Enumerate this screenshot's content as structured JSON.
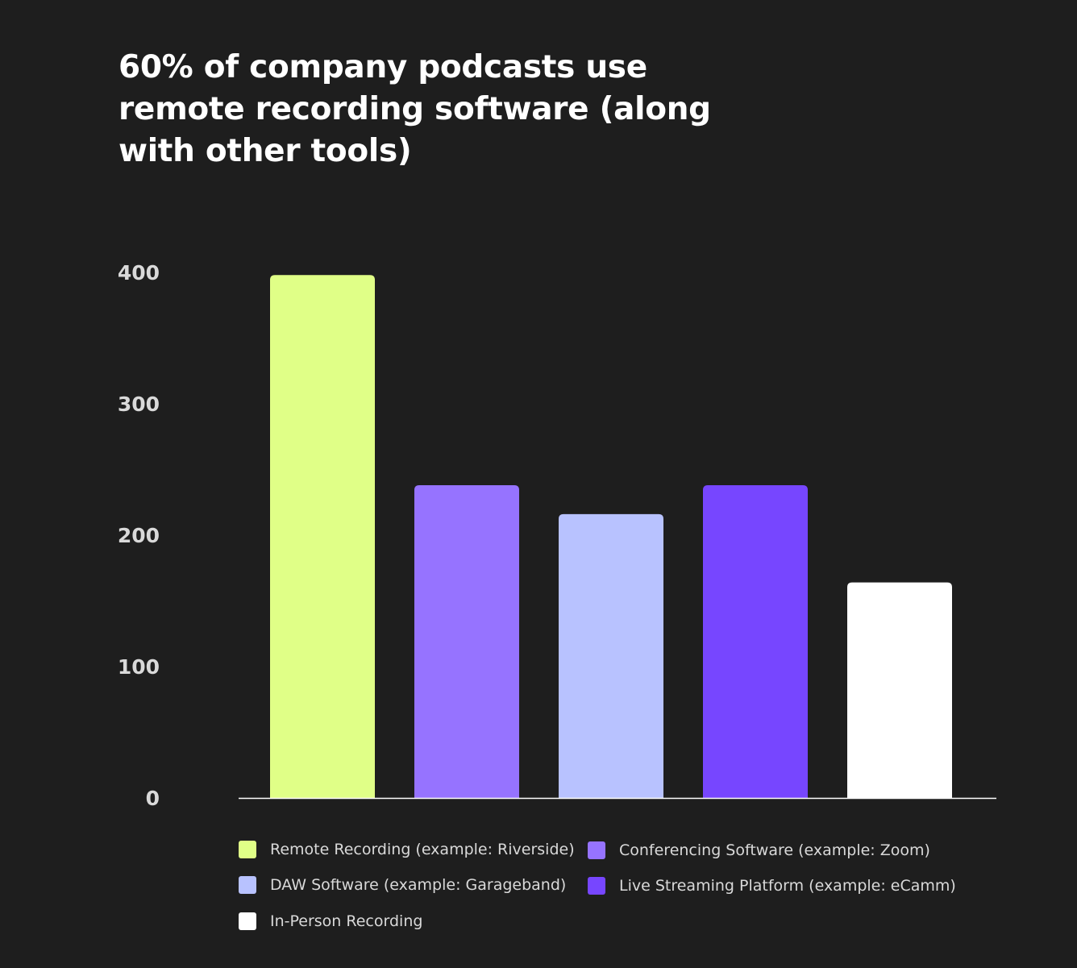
{
  "chart_data": {
    "type": "bar",
    "title": "60% of company podcasts use remote recording software (along with other tools)",
    "categories": [
      "Remote Recording (example: Riverside)",
      "Conferencing Software (example: Zoom)",
      "DAW Software (example: Garageband)",
      "Live Streaming Platform (example: eCamm)",
      "In-Person Recording"
    ],
    "values": [
      398,
      238,
      216,
      238,
      164
    ],
    "colors": [
      "#e0ff87",
      "#9673ff",
      "#b8c2ff",
      "#7746ff",
      "#ffffff"
    ],
    "ylim": [
      0,
      400
    ],
    "yticks": [
      "0",
      "100",
      "200",
      "300",
      "400"
    ],
    "xlabel": "",
    "ylabel": "",
    "grid": false,
    "legend_position": "bottom"
  },
  "legend": {
    "items": [
      {
        "label": "Remote Recording (example: Riverside)",
        "color": "#e0ff87"
      },
      {
        "label": "Conferencing Software (example: Zoom)",
        "color": "#9673ff"
      },
      {
        "label": "DAW Software (example: Garageband)",
        "color": "#b8c2ff"
      },
      {
        "label": "Live Streaming Platform (example: eCamm)",
        "color": "#7746ff"
      },
      {
        "label": "In-Person Recording",
        "color": "#ffffff"
      }
    ]
  }
}
